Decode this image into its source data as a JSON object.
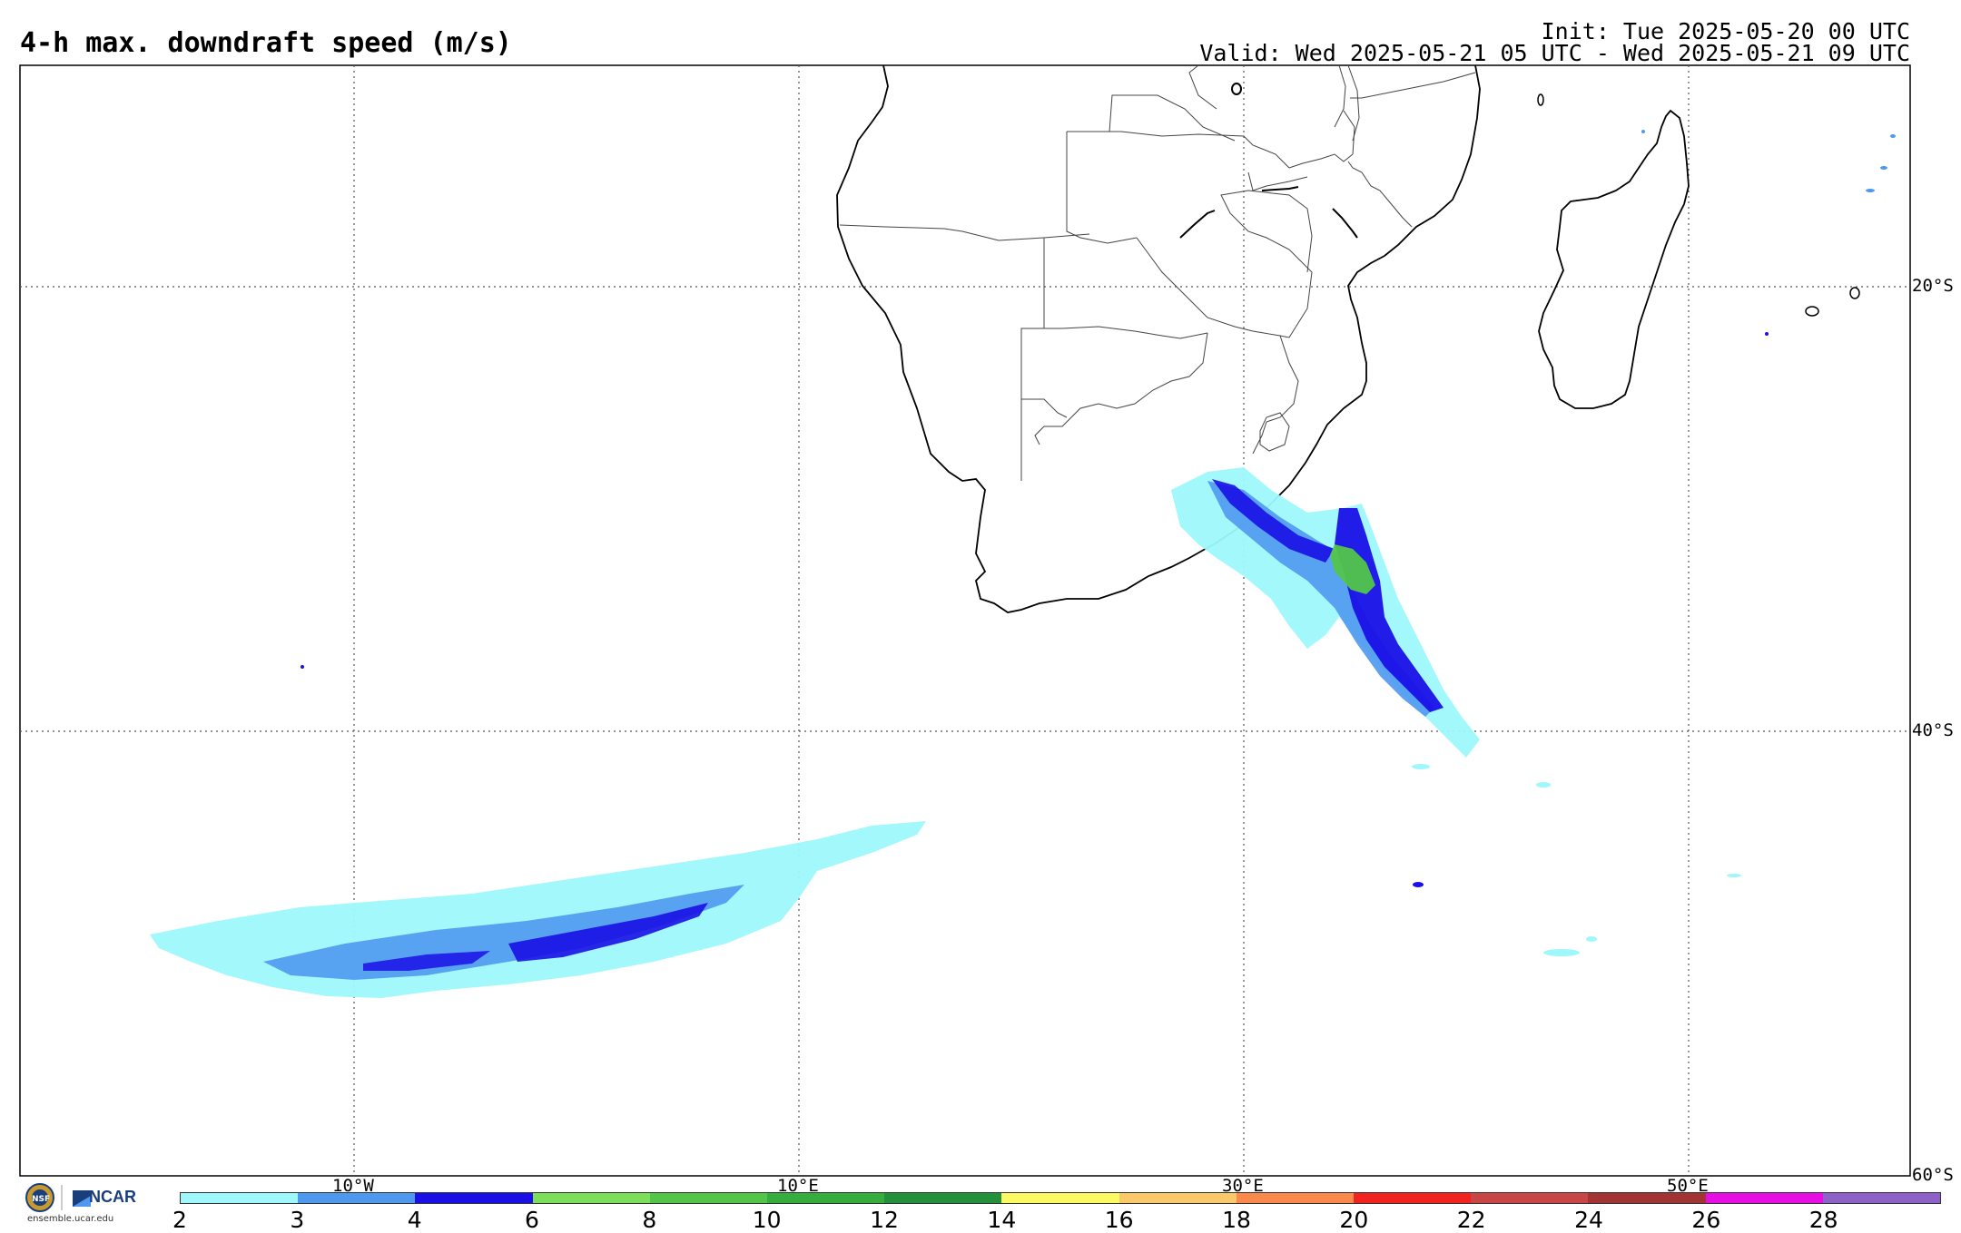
{
  "header": {
    "title": "4-h max. downdraft speed (m/s)",
    "init": "Init: Tue 2025-05-20 00 UTC",
    "valid": "Valid: Wed 2025-05-21 05 UTC - Wed 2025-05-21 09 UTC"
  },
  "grid": {
    "lat_labels": [
      "20°S",
      "40°S",
      "60°S"
    ],
    "lon_labels": [
      "10°W",
      "10°E",
      "30°E",
      "50°E"
    ]
  },
  "colorbar": {
    "ticks": [
      "2",
      "3",
      "4",
      "6",
      "8",
      "10",
      "12",
      "14",
      "16",
      "18",
      "20",
      "22",
      "24",
      "26",
      "28"
    ],
    "colors": [
      "#9ef8fb",
      "#4f98f0",
      "#1a10e6",
      "#7cde5a",
      "#53c64a",
      "#36ae3e",
      "#23903b",
      "#fbfa62",
      "#fbc96a",
      "#f98a4c",
      "#f2231e",
      "#c94646",
      "#a33434",
      "#e60ee2",
      "#8e61c9"
    ]
  },
  "logo": {
    "nsf": "NSF",
    "ncar": "NCAR",
    "url": "ensemble.ucar.edu"
  }
}
